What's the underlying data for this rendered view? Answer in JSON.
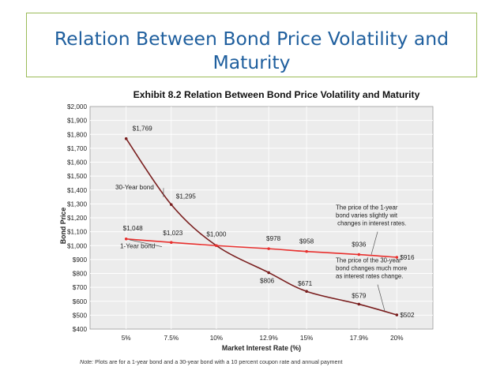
{
  "slide": {
    "title_line1": "Relation Between Bond Price Volatility and",
    "title_line2": "Maturity",
    "accent_border": "#9bbb59",
    "title_color": "#1f5f9e"
  },
  "chart_data": {
    "type": "line",
    "title": "Exhibit 8.2 Relation Between Bond Price Volatility and Maturity",
    "xlabel": "Market Interest Rate (%)",
    "ylabel": "Bond Price",
    "categories": [
      "5%",
      "7.5%",
      "10%",
      "12.9%",
      "15%",
      "17.9%",
      "20%"
    ],
    "x": [
      5,
      7.5,
      10,
      12.9,
      15,
      17.9,
      20
    ],
    "xlim": [
      3,
      22
    ],
    "ylim": [
      400,
      2000
    ],
    "ytick_step": 100,
    "y_tick_labels": [
      "$400",
      "$500",
      "$600",
      "$700",
      "$800",
      "$900",
      "$1,000",
      "$1,100",
      "$1,200",
      "$1,300",
      "$1,400",
      "$1,500",
      "$1,600",
      "$1,700",
      "$1,800",
      "$1,900",
      "$2,000"
    ],
    "grid": true,
    "series": [
      {
        "name": "30-Year bond",
        "color": "#7a1f1f",
        "values": [
          1769,
          1295,
          1000,
          806,
          671,
          579,
          502
        ],
        "labels": [
          "$1,769",
          "$1,295",
          "$1,000",
          "$806",
          "$671",
          "$579",
          "$502"
        ]
      },
      {
        "name": "1-Year bond",
        "color": "#e8302e",
        "values": [
          1048,
          1023,
          1000,
          978,
          958,
          936,
          916
        ],
        "labels": [
          "$1,048",
          "$1,023",
          "",
          "$978",
          "$958",
          "$936",
          "$916"
        ]
      }
    ],
    "annotations": [
      "The price of the 1-year bond varies slightly with changes in interest rates.",
      "The price of the 30-year bond changes much more as interest rates change."
    ]
  },
  "note": {
    "prefix": "Note:",
    "text": " Plots are for a 1-year bond and a 30-year bond with a 10 percent coupon rate and annual payment"
  }
}
